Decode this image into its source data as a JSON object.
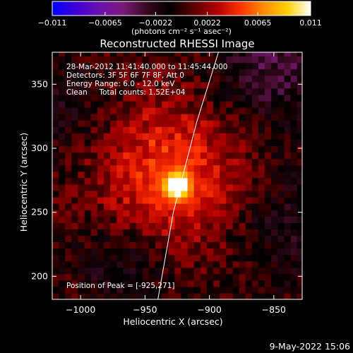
{
  "chart_data": {
    "type": "heatmap",
    "title": "Reconstructed RHESSI Image",
    "xlabel": "Heliocentric X (arcsec)",
    "ylabel": "Heliocentric Y (arcsec)",
    "xlim": [
      -1022,
      -828
    ],
    "ylim": [
      182,
      375
    ],
    "x_ticks": [
      -1000,
      -950,
      -900,
      -850
    ],
    "y_ticks": [
      200,
      250,
      300,
      350
    ],
    "x_tick_labels": [
      "−1000",
      "−950",
      "−900",
      "−850"
    ],
    "y_tick_labels": [
      "200",
      "250",
      "300",
      "350"
    ],
    "colorbar": {
      "min": -0.011,
      "max": 0.011,
      "tick_values": [
        -0.011,
        -0.0065,
        -0.0022,
        0.0022,
        0.0065,
        0.011
      ],
      "tick_labels": [
        "−0.011",
        "−0.0065",
        "−0.0022",
        "0.0022",
        "0.0065",
        "0.011"
      ],
      "units_label": "(photons cm⁻² s⁻¹ asec⁻²)",
      "colormap": [
        "#0000ff",
        "#3c00d4",
        "#6a12b0",
        "#7a1a7a",
        "#3a0a20",
        "#000000",
        "#5a0000",
        "#b00000",
        "#ff3000",
        "#ff8c00",
        "#ffd000",
        "#ffffff"
      ]
    },
    "info_lines": [
      "28-Mar-2012 11:41:40.000 to 11:45:44.000",
      "Detectors: 3F 5F 6F 7F 8F, Att 0",
      "Energy Range: 6.0 - 12.0 keV",
      "Clean     Total counts: 1.52E+04"
    ],
    "peak_label": "Position of Peak = [-925,271]",
    "peak": {
      "x": -925,
      "y": 271,
      "value": 0.011
    },
    "limb": [
      [
        -940,
        182
      ],
      [
        -928,
        250
      ],
      [
        -910,
        320
      ],
      [
        -893,
        375
      ]
    ],
    "grid": false
  },
  "footer_timestamp": "9-May-2022 15:06"
}
